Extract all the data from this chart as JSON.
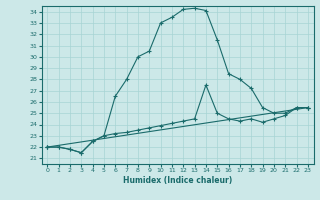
{
  "title": "",
  "xlabel": "Humidex (Indice chaleur)",
  "bg_color": "#cce8e8",
  "line_color": "#1a6b6b",
  "ylim": [
    20.5,
    34.5
  ],
  "xlim": [
    -0.5,
    23.5
  ],
  "yticks": [
    21,
    22,
    23,
    24,
    25,
    26,
    27,
    28,
    29,
    30,
    31,
    32,
    33,
    34
  ],
  "xticks": [
    0,
    1,
    2,
    3,
    4,
    5,
    6,
    7,
    8,
    9,
    10,
    11,
    12,
    13,
    14,
    15,
    16,
    17,
    18,
    19,
    20,
    21,
    22,
    23
  ],
  "line1_x": [
    0,
    1,
    2,
    3,
    4,
    5,
    6,
    7,
    8,
    9,
    10,
    11,
    12,
    13,
    14,
    15,
    16,
    17,
    18,
    19,
    20,
    21,
    22,
    23
  ],
  "line1_y": [
    22,
    22,
    21.8,
    21.5,
    22.5,
    23,
    26.5,
    28,
    30,
    30.5,
    33,
    33.5,
    34.2,
    34.3,
    34.1,
    31.5,
    28.5,
    28,
    27.2,
    25.5,
    25,
    25,
    25.5,
    25.5
  ],
  "line2_x": [
    0,
    1,
    2,
    3,
    4,
    5,
    6,
    7,
    8,
    9,
    10,
    11,
    12,
    13,
    14,
    15,
    16,
    17,
    18,
    19,
    20,
    21,
    22,
    23
  ],
  "line2_y": [
    22,
    22,
    21.8,
    21.5,
    22.5,
    23,
    23.2,
    23.3,
    23.5,
    23.7,
    23.9,
    24.1,
    24.3,
    24.5,
    27.5,
    25,
    24.5,
    24.3,
    24.5,
    24.2,
    24.5,
    24.8,
    25.5,
    25.5
  ],
  "line3_x": [
    0,
    23
  ],
  "line3_y": [
    22,
    25.5
  ],
  "grid_color": "#a8d4d4",
  "marker": "+"
}
